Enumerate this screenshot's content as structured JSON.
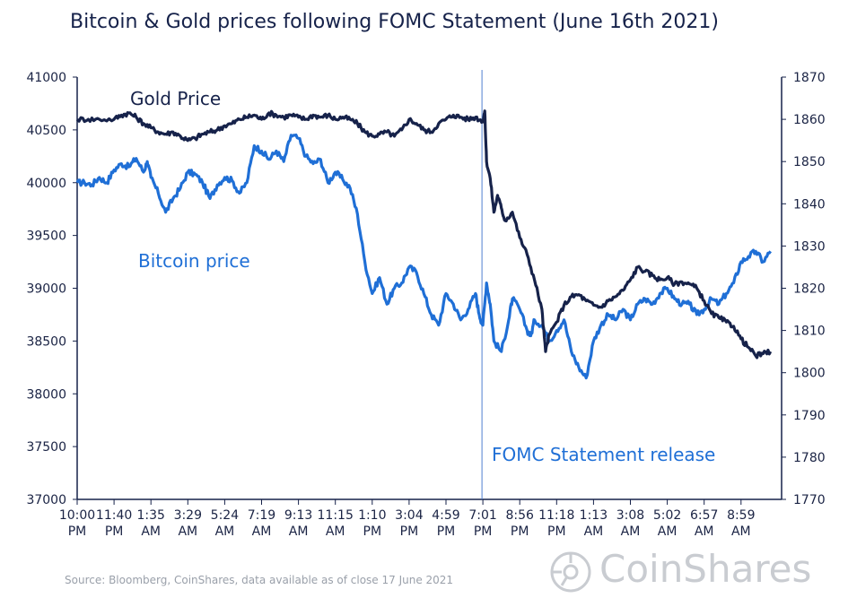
{
  "chart_data": {
    "type": "line",
    "title": "Bitcoin & Gold prices following FOMC Statement (June 16th 2021)",
    "x_tick_labels": [
      [
        "10:00",
        "PM"
      ],
      [
        "11:40",
        "PM"
      ],
      [
        "1:35",
        "AM"
      ],
      [
        "3:29",
        "AM"
      ],
      [
        "5:24",
        "AM"
      ],
      [
        "7:19",
        "AM"
      ],
      [
        "9:13",
        "AM"
      ],
      [
        "11:15",
        "AM"
      ],
      [
        "1:10",
        "PM"
      ],
      [
        "3:04",
        "PM"
      ],
      [
        "4:59",
        "PM"
      ],
      [
        "7:01",
        "PM"
      ],
      [
        "8:56",
        "PM"
      ],
      [
        "11:18",
        "PM"
      ],
      [
        "1:13",
        "AM"
      ],
      [
        "3:08",
        "AM"
      ],
      [
        "5:02",
        "AM"
      ],
      [
        "6:57",
        "AM"
      ],
      [
        "8:59",
        "AM"
      ]
    ],
    "y_left": {
      "ticks": [
        37000,
        37500,
        38000,
        38500,
        39000,
        39500,
        40000,
        40500,
        41000
      ],
      "ylim": [
        37000,
        41000
      ]
    },
    "y_right": {
      "ticks": [
        1770,
        1780,
        1790,
        1800,
        1810,
        1820,
        1830,
        1840,
        1850,
        1860,
        1870
      ],
      "ylim": [
        1770,
        1870
      ]
    },
    "event": {
      "x_index": 11,
      "label": "FOMC Statement release"
    },
    "series": [
      {
        "name": "Bitcoin price",
        "axis": "left",
        "color": "#1f6fd6",
        "points": [
          [
            0,
            40000
          ],
          [
            0.2,
            40000
          ],
          [
            0.4,
            39980
          ],
          [
            0.6,
            40050
          ],
          [
            0.8,
            40000
          ],
          [
            1.0,
            40120
          ],
          [
            1.2,
            40180
          ],
          [
            1.4,
            40150
          ],
          [
            1.6,
            40230
          ],
          [
            1.8,
            40100
          ],
          [
            1.9,
            40200
          ],
          [
            2.0,
            40050
          ],
          [
            2.2,
            39900
          ],
          [
            2.4,
            39720
          ],
          [
            2.6,
            39850
          ],
          [
            2.8,
            39950
          ],
          [
            3.0,
            40100
          ],
          [
            3.2,
            40080
          ],
          [
            3.4,
            40000
          ],
          [
            3.6,
            39850
          ],
          [
            3.8,
            39980
          ],
          [
            4.0,
            40050
          ],
          [
            4.2,
            40020
          ],
          [
            4.4,
            39900
          ],
          [
            4.6,
            40000
          ],
          [
            4.8,
            40350
          ],
          [
            5.0,
            40300
          ],
          [
            5.2,
            40220
          ],
          [
            5.4,
            40300
          ],
          [
            5.6,
            40200
          ],
          [
            5.8,
            40450
          ],
          [
            6.0,
            40420
          ],
          [
            6.2,
            40250
          ],
          [
            6.4,
            40180
          ],
          [
            6.6,
            40220
          ],
          [
            6.8,
            40000
          ],
          [
            7.0,
            40100
          ],
          [
            7.2,
            40030
          ],
          [
            7.4,
            39950
          ],
          [
            7.6,
            39700
          ],
          [
            7.8,
            39250
          ],
          [
            8.0,
            38950
          ],
          [
            8.2,
            39100
          ],
          [
            8.4,
            38850
          ],
          [
            8.6,
            39000
          ],
          [
            8.8,
            39050
          ],
          [
            9.0,
            39200
          ],
          [
            9.2,
            39150
          ],
          [
            9.4,
            38950
          ],
          [
            9.6,
            38750
          ],
          [
            9.8,
            38650
          ],
          [
            10.0,
            38950
          ],
          [
            10.2,
            38850
          ],
          [
            10.4,
            38700
          ],
          [
            10.6,
            38800
          ],
          [
            10.8,
            38950
          ],
          [
            10.9,
            38750
          ],
          [
            11.0,
            38650
          ],
          [
            11.1,
            39050
          ],
          [
            11.2,
            38850
          ],
          [
            11.3,
            38500
          ],
          [
            11.5,
            38400
          ],
          [
            11.7,
            38700
          ],
          [
            11.8,
            38900
          ],
          [
            12.0,
            38800
          ],
          [
            12.2,
            38600
          ],
          [
            12.3,
            38550
          ],
          [
            12.4,
            38700
          ],
          [
            12.6,
            38650
          ],
          [
            12.8,
            38500
          ],
          [
            13.0,
            38600
          ],
          [
            13.2,
            38700
          ],
          [
            13.4,
            38400
          ],
          [
            13.6,
            38250
          ],
          [
            13.8,
            38150
          ],
          [
            14.0,
            38500
          ],
          [
            14.2,
            38650
          ],
          [
            14.4,
            38750
          ],
          [
            14.6,
            38700
          ],
          [
            14.8,
            38800
          ],
          [
            15.0,
            38700
          ],
          [
            15.2,
            38850
          ],
          [
            15.4,
            38900
          ],
          [
            15.6,
            38850
          ],
          [
            15.8,
            38950
          ],
          [
            16.0,
            39000
          ],
          [
            16.2,
            38900
          ],
          [
            16.4,
            38850
          ],
          [
            16.6,
            38850
          ],
          [
            16.8,
            38750
          ],
          [
            17.0,
            38800
          ],
          [
            17.2,
            38900
          ],
          [
            17.4,
            38850
          ],
          [
            17.6,
            38950
          ],
          [
            17.8,
            39050
          ],
          [
            18.0,
            39250
          ],
          [
            18.2,
            39300
          ],
          [
            18.4,
            39350
          ],
          [
            18.6,
            39250
          ],
          [
            18.8,
            39350
          ]
        ]
      },
      {
        "name": "Gold Price",
        "axis": "right",
        "color": "#16224a",
        "points": [
          [
            0,
            1860
          ],
          [
            0.3,
            1860
          ],
          [
            0.6,
            1860
          ],
          [
            1.0,
            1860
          ],
          [
            1.2,
            1861
          ],
          [
            1.4,
            1861.5
          ],
          [
            1.6,
            1860.5
          ],
          [
            1.8,
            1859
          ],
          [
            2.0,
            1858
          ],
          [
            2.2,
            1857
          ],
          [
            2.4,
            1856.5
          ],
          [
            2.6,
            1857
          ],
          [
            2.8,
            1856
          ],
          [
            3.0,
            1855
          ],
          [
            3.2,
            1855.5
          ],
          [
            3.4,
            1856.5
          ],
          [
            3.6,
            1857
          ],
          [
            3.8,
            1857.5
          ],
          [
            4.0,
            1858.5
          ],
          [
            4.2,
            1859
          ],
          [
            4.4,
            1860
          ],
          [
            4.6,
            1860.5
          ],
          [
            4.8,
            1861
          ],
          [
            5.0,
            1860
          ],
          [
            5.2,
            1861.5
          ],
          [
            5.4,
            1861
          ],
          [
            5.6,
            1860.5
          ],
          [
            5.8,
            1861
          ],
          [
            6.0,
            1860.5
          ],
          [
            6.2,
            1860
          ],
          [
            6.4,
            1861
          ],
          [
            6.6,
            1860.5
          ],
          [
            6.8,
            1861
          ],
          [
            7.0,
            1860
          ],
          [
            7.2,
            1860.5
          ],
          [
            7.4,
            1860
          ],
          [
            7.6,
            1859
          ],
          [
            7.8,
            1857
          ],
          [
            8.0,
            1856
          ],
          [
            8.2,
            1856.5
          ],
          [
            8.4,
            1857
          ],
          [
            8.6,
            1856
          ],
          [
            8.8,
            1857.5
          ],
          [
            9.0,
            1860
          ],
          [
            9.2,
            1859
          ],
          [
            9.4,
            1857.5
          ],
          [
            9.6,
            1857
          ],
          [
            9.8,
            1859
          ],
          [
            10.0,
            1860
          ],
          [
            10.2,
            1861
          ],
          [
            10.4,
            1860.5
          ],
          [
            10.6,
            1860
          ],
          [
            10.8,
            1860.5
          ],
          [
            11.0,
            1859.5
          ],
          [
            11.05,
            1862
          ],
          [
            11.1,
            1850
          ],
          [
            11.2,
            1846
          ],
          [
            11.3,
            1838
          ],
          [
            11.4,
            1842
          ],
          [
            11.5,
            1839
          ],
          [
            11.6,
            1836
          ],
          [
            11.8,
            1838
          ],
          [
            12.0,
            1832
          ],
          [
            12.2,
            1828
          ],
          [
            12.4,
            1822
          ],
          [
            12.6,
            1815
          ],
          [
            12.7,
            1805
          ],
          [
            12.8,
            1809
          ],
          [
            13.0,
            1812
          ],
          [
            13.2,
            1816
          ],
          [
            13.4,
            1818
          ],
          [
            13.6,
            1818.5
          ],
          [
            13.8,
            1817
          ],
          [
            14.0,
            1816
          ],
          [
            14.2,
            1815.5
          ],
          [
            14.4,
            1817
          ],
          [
            14.6,
            1818
          ],
          [
            14.8,
            1819.5
          ],
          [
            15.0,
            1822
          ],
          [
            15.2,
            1825
          ],
          [
            15.4,
            1824
          ],
          [
            15.6,
            1823
          ],
          [
            15.8,
            1822
          ],
          [
            16.0,
            1822.5
          ],
          [
            16.2,
            1821
          ],
          [
            16.4,
            1821.5
          ],
          [
            16.6,
            1821
          ],
          [
            16.8,
            1820
          ],
          [
            17.0,
            1817
          ],
          [
            17.2,
            1814
          ],
          [
            17.4,
            1813
          ],
          [
            17.6,
            1812
          ],
          [
            17.8,
            1811
          ],
          [
            18.0,
            1808
          ],
          [
            18.2,
            1806
          ],
          [
            18.4,
            1804
          ],
          [
            18.6,
            1804.5
          ],
          [
            18.8,
            1805
          ]
        ]
      }
    ]
  },
  "source": "Source: Bloomberg, CoinShares, data available as of close 17 June 2021",
  "logo_text": "CoinShares"
}
